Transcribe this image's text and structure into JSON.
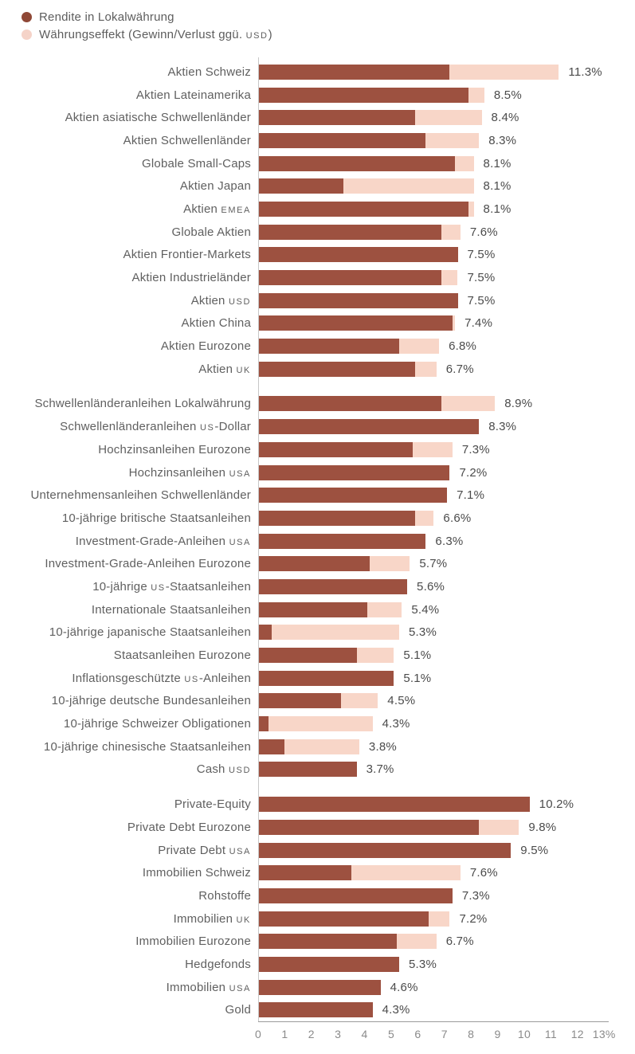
{
  "legend": [
    {
      "name": "local-return",
      "label": "Rendite in Lokalwährung",
      "color": "#8f4836"
    },
    {
      "name": "currency-effect",
      "label": "Währungseffekt (Gewinn/Verlust ggü. USD)",
      "color": "#f5d3c8"
    }
  ],
  "colors": {
    "local_bar": "#9d5140",
    "fx_bar": "#f8d6c8",
    "label_text": "#606060",
    "value_text": "#4b4b4b",
    "axis_line": "#9b9b9b",
    "tick_text": "#8a8a8a"
  },
  "axis": {
    "ticks": [
      "0",
      "1",
      "2",
      "3",
      "4",
      "5",
      "6",
      "7",
      "8",
      "9",
      "10",
      "11",
      "12",
      "13%"
    ],
    "min": 0,
    "max": 13
  },
  "chart_data": {
    "type": "bar",
    "orientation": "horizontal",
    "stacked": true,
    "grid": false,
    "legend_position": "top-left",
    "xlabel": "",
    "ylabel": "",
    "xlim": [
      0,
      13
    ],
    "x_unit": "%",
    "series_names": [
      "Rendite in Lokalwährung",
      "Währungseffekt (Gewinn/Verlust ggü. USD)"
    ],
    "groups": [
      {
        "name": "equities",
        "rows": [
          {
            "label": "Aktien Schweiz",
            "local": 7.2,
            "fx": 4.1,
            "total_label": "11.3%"
          },
          {
            "label": "Aktien Lateinamerika",
            "local": 7.9,
            "fx": 0.6,
            "total_label": "8.5%"
          },
          {
            "label": "Aktien asiatische Schwellenländer",
            "local": 5.9,
            "fx": 2.5,
            "total_label": "8.4%"
          },
          {
            "label": "Aktien Schwellenländer",
            "local": 6.3,
            "fx": 2.0,
            "total_label": "8.3%"
          },
          {
            "label": "Globale Small-Caps",
            "local": 7.4,
            "fx": 0.7,
            "total_label": "8.1%"
          },
          {
            "label": "Aktien Japan",
            "local": 3.2,
            "fx": 4.9,
            "total_label": "8.1%"
          },
          {
            "label": "Aktien EMEA",
            "local": 7.9,
            "fx": 0.2,
            "total_label": "8.1%"
          },
          {
            "label": "Globale Aktien",
            "local": 6.9,
            "fx": 0.7,
            "total_label": "7.6%"
          },
          {
            "label": "Aktien Frontier-Markets",
            "local": 7.5,
            "fx": 0.0,
            "total_label": "7.5%"
          },
          {
            "label": "Aktien Industrieländer",
            "local": 6.9,
            "fx": 0.6,
            "total_label": "7.5%"
          },
          {
            "label": "Aktien USD",
            "local": 7.5,
            "fx": 0.0,
            "total_label": "7.5%"
          },
          {
            "label": "Aktien China",
            "local": 7.3,
            "fx": 0.1,
            "total_label": "7.4%"
          },
          {
            "label": "Aktien Eurozone",
            "local": 5.3,
            "fx": 1.5,
            "total_label": "6.8%"
          },
          {
            "label": "Aktien UK",
            "local": 5.9,
            "fx": 0.8,
            "total_label": "6.7%"
          }
        ]
      },
      {
        "name": "bonds",
        "rows": [
          {
            "label": "Schwellenländeranleihen Lokalwährung",
            "local": 6.9,
            "fx": 2.0,
            "total_label": "8.9%"
          },
          {
            "label": "Schwellenländeranleihen US-Dollar",
            "local": 8.3,
            "fx": 0.0,
            "total_label": "8.3%"
          },
          {
            "label": "Hochzinsanleihen Eurozone",
            "local": 5.8,
            "fx": 1.5,
            "total_label": "7.3%"
          },
          {
            "label": "Hochzinsanleihen USA",
            "local": 7.2,
            "fx": 0.0,
            "total_label": "7.2%"
          },
          {
            "label": "Unternehmensanleihen Schwellenländer",
            "local": 7.1,
            "fx": 0.0,
            "total_label": "7.1%"
          },
          {
            "label": "10-jährige britische Staatsanleihen",
            "local": 5.9,
            "fx": 0.7,
            "total_label": "6.6%"
          },
          {
            "label": "Investment-Grade-Anleihen USA",
            "local": 6.3,
            "fx": 0.0,
            "total_label": "6.3%"
          },
          {
            "label": "Investment-Grade-Anleihen Eurozone",
            "local": 4.2,
            "fx": 1.5,
            "total_label": "5.7%"
          },
          {
            "label": "10-jährige US-Staatsanleihen",
            "local": 5.6,
            "fx": 0.0,
            "total_label": "5.6%"
          },
          {
            "label": "Internationale Staatsanleihen",
            "local": 4.1,
            "fx": 1.3,
            "total_label": "5.4%"
          },
          {
            "label": "10-jährige japanische Staatsanleihen",
            "local": 0.5,
            "fx": 4.8,
            "total_label": "5.3%"
          },
          {
            "label": "Staatsanleihen Eurozone",
            "local": 3.7,
            "fx": 1.4,
            "total_label": "5.1%"
          },
          {
            "label": "Inflationsgeschützte US-Anleihen",
            "local": 5.1,
            "fx": 0.0,
            "total_label": "5.1%"
          },
          {
            "label": "10-jährige deutsche Bundesanleihen",
            "local": 3.1,
            "fx": 1.4,
            "total_label": "4.5%"
          },
          {
            "label": "10-jährige Schweizer Obligationen",
            "local": 0.4,
            "fx": 3.9,
            "total_label": "4.3%"
          },
          {
            "label": "10-jährige chinesische Staatsanleihen",
            "local": 1.0,
            "fx": 2.8,
            "total_label": "3.8%"
          },
          {
            "label": "Cash USD",
            "local": 3.7,
            "fx": 0.0,
            "total_label": "3.7%"
          }
        ]
      },
      {
        "name": "alternatives",
        "rows": [
          {
            "label": "Private-Equity",
            "local": 10.2,
            "fx": 0.0,
            "total_label": "10.2%"
          },
          {
            "label": "Private Debt Eurozone",
            "local": 8.3,
            "fx": 1.5,
            "total_label": "9.8%"
          },
          {
            "label": "Private Debt USA",
            "local": 9.5,
            "fx": 0.0,
            "total_label": "9.5%"
          },
          {
            "label": "Immobilien Schweiz",
            "local": 3.5,
            "fx": 4.1,
            "total_label": "7.6%"
          },
          {
            "label": "Rohstoffe",
            "local": 7.3,
            "fx": 0.0,
            "total_label": "7.3%"
          },
          {
            "label": "Immobilien UK",
            "local": 6.4,
            "fx": 0.8,
            "total_label": "7.2%"
          },
          {
            "label": "Immobilien Eurozone",
            "local": 5.2,
            "fx": 1.5,
            "total_label": "6.7%"
          },
          {
            "label": "Hedgefonds",
            "local": 5.3,
            "fx": 0.0,
            "total_label": "5.3%"
          },
          {
            "label": "Immobilien USA",
            "local": 4.6,
            "fx": 0.0,
            "total_label": "4.6%"
          },
          {
            "label": "Gold",
            "local": 4.3,
            "fx": 0.0,
            "total_label": "4.3%"
          }
        ]
      }
    ]
  }
}
